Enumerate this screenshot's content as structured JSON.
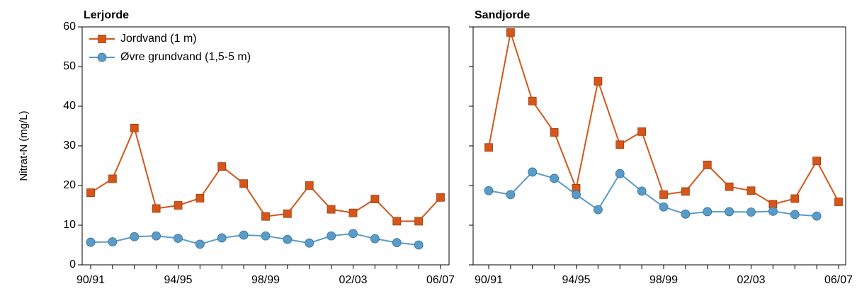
{
  "chart_data": [
    {
      "type": "line",
      "title": "Lerjorde",
      "y_label": "Nitrat-N (mg/L)",
      "categories": [
        "90/91",
        null,
        null,
        null,
        "94/95",
        null,
        null,
        null,
        "98/99",
        null,
        null,
        null,
        "02/03",
        null,
        null,
        null,
        "06/07"
      ],
      "series": [
        {
          "name": "Jordvand (1 m)",
          "color": "#d4561a",
          "marker": "square",
          "values": [
            18.2,
            21.7,
            34.5,
            14.2,
            15.0,
            16.8,
            24.8,
            20.5,
            12.2,
            12.9,
            20.0,
            14.0,
            13.1,
            16.6,
            11.0,
            11.0,
            17.0
          ]
        },
        {
          "name": "Øvre grundvand (1,5-5 m)",
          "color": "#5b9bc8",
          "marker": "circle",
          "values": [
            5.7,
            5.8,
            7.1,
            7.3,
            6.7,
            5.2,
            6.8,
            7.5,
            7.3,
            6.4,
            5.5,
            7.3,
            7.9,
            6.6,
            5.6,
            5.0,
            null
          ]
        }
      ],
      "ylim": [
        0,
        60
      ],
      "yticks": [
        0,
        10,
        20,
        30,
        40,
        50,
        60
      ],
      "legend": "upper left"
    },
    {
      "type": "line",
      "title": "Sandjorde",
      "categories": [
        "90/91",
        null,
        null,
        null,
        "94/95",
        null,
        null,
        null,
        "98/99",
        null,
        null,
        null,
        "02/03",
        null,
        null,
        null,
        "06/07"
      ],
      "series": [
        {
          "color": "#d4561a",
          "marker": "square",
          "values": [
            29.6,
            58.6,
            41.3,
            33.4,
            19.3,
            46.3,
            30.3,
            33.6,
            17.7,
            18.5,
            25.2,
            19.7,
            18.7,
            15.3,
            16.7,
            26.2,
            15.9
          ]
        },
        {
          "color": "#5b9bc8",
          "marker": "circle",
          "values": [
            18.7,
            17.7,
            23.4,
            21.8,
            17.7,
            13.9,
            23.0,
            18.6,
            14.6,
            12.8,
            13.4,
            13.4,
            13.3,
            13.5,
            12.7,
            12.3,
            null
          ]
        }
      ],
      "ylim": [
        0,
        60
      ],
      "yticks": [
        0,
        10,
        20,
        30,
        40,
        50,
        60
      ]
    }
  ]
}
